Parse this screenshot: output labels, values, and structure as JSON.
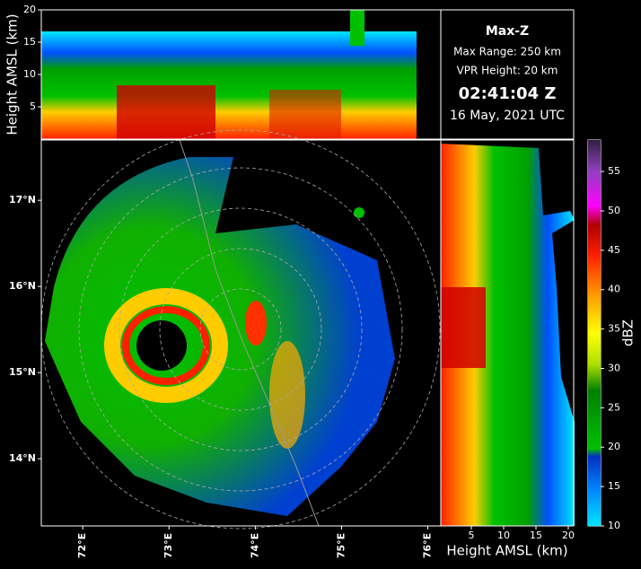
{
  "info": {
    "title": "Max-Z",
    "range": "Max Range: 250 km",
    "vpr": "VPR Height: 20 km",
    "time": "02:41:04 Z",
    "date": "16 May, 2021 UTC"
  },
  "top_panel": {
    "ylabel": "Height AMSL (km)",
    "ylim": [
      0,
      20
    ],
    "yticks": [
      5,
      10,
      15,
      20
    ]
  },
  "right_panel": {
    "xlabel": "Height AMSL (km)",
    "xlim": [
      0,
      20
    ],
    "xticks": [
      5,
      10,
      15,
      20
    ]
  },
  "map": {
    "latlim": [
      13.22,
      17.7
    ],
    "lonlim": [
      71.52,
      76.15
    ],
    "lat_ticks": [
      {
        "value": 14,
        "label": "14°N"
      },
      {
        "value": 15,
        "label": "15°N"
      },
      {
        "value": 16,
        "label": "16°N"
      },
      {
        "value": 17,
        "label": "17°N"
      }
    ],
    "lon_ticks": [
      {
        "value": 72,
        "label": "72°E"
      },
      {
        "value": 73,
        "label": "73°E"
      },
      {
        "value": 74,
        "label": "74°E"
      },
      {
        "value": 75,
        "label": "75°E"
      },
      {
        "value": 76,
        "label": "76°E"
      }
    ]
  },
  "colorbar": {
    "label": "dBZ",
    "lim": [
      10,
      59
    ],
    "ticks": [
      10,
      15,
      20,
      25,
      30,
      35,
      40,
      45,
      50,
      55
    ]
  }
}
